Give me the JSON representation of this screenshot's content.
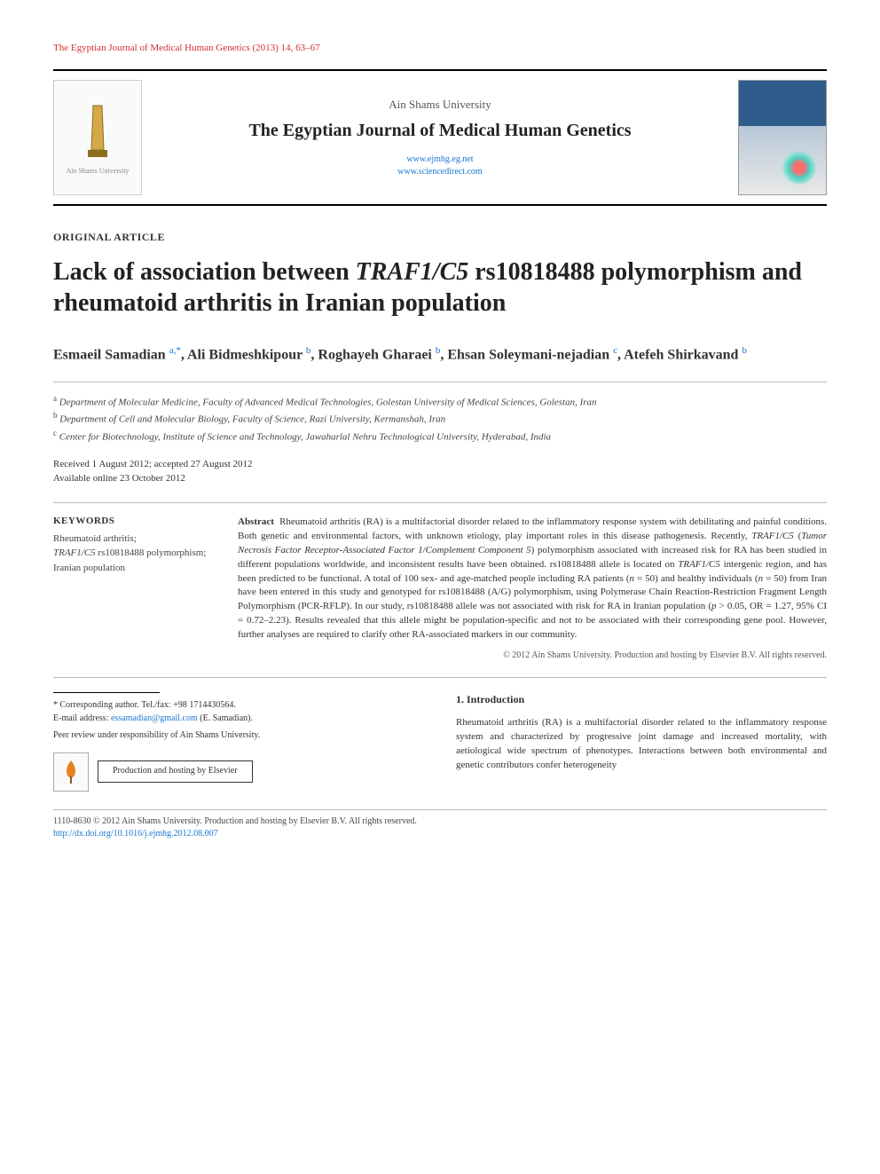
{
  "running_head": "The Egyptian Journal of Medical Human Genetics (2013) 14, 63–67",
  "header": {
    "university": "Ain Shams University",
    "journal": "The Egyptian Journal of Medical Human Genetics",
    "link1": "www.ejmhg.eg.net",
    "link2": "www.sciencedirect.com",
    "logo_caption": "Ain Shams University"
  },
  "article_type": "ORIGINAL ARTICLE",
  "title_pre": "Lack of association between ",
  "title_ital": "TRAF1/C5",
  "title_post": " rs10818488 polymorphism and rheumatoid arthritis in Iranian population",
  "authors_html": "Esmaeil Samadian <sup>a,*</sup>, Ali Bidmeshkipour <sup>b</sup>, Roghayeh Gharaei <sup>b</sup>, Ehsan Soleymani-nejadian <sup>c</sup>, Atefeh Shirkavand <sup>b</sup>",
  "affils": {
    "a": "Department of Molecular Medicine, Faculty of Advanced Medical Technologies, Golestan University of Medical Sciences, Golestan, Iran",
    "b": "Department of Cell and Molecular Biology, Faculty of Science, Razi University, Kermanshah, Iran",
    "c": "Center for Biotechnology, Institute of Science and Technology, Jawaharlal Nehru Technological University, Hyderabad, India"
  },
  "dates": {
    "received_accepted": "Received 1 August 2012; accepted 27 August 2012",
    "online": "Available online 23 October 2012"
  },
  "keywords": {
    "heading": "KEYWORDS",
    "k1": "Rheumatoid arthritis;",
    "k2_ital": "TRAF1/C5",
    "k2_rest": " rs10818488 polymorphism;",
    "k3": "Iranian population"
  },
  "abstract": {
    "label": "Abstract",
    "p1a": "Rheumatoid arthritis (RA) is a multifactorial disorder related to the inflammatory response system with debilitating and painful conditions. Both genetic and environmental factors, with unknown etiology, play important roles in this disease pathogenesis. Recently, ",
    "p1_ital1": "TRAF1/C5",
    "p1b": " (",
    "p1_ital2": "Tumor Necrosis Factor Receptor-Associated Factor 1/Complement Component 5",
    "p1c": ") polymorphism associated with increased risk for RA has been studied in different populations worldwide, and inconsistent results have been obtained. rs10818488 allele is located on ",
    "p1_ital3": "TRAF1/C5",
    "p1d": " intergenic region, and has been predicted to be functional. A total of 100 sex- and age-matched people including RA patients (",
    "p1_ital4": "n",
    "p1e": " = 50) and healthy individuals (",
    "p1_ital5": "n",
    "p1f": " = 50) from Iran have been entered in this study and genotyped for rs10818488 (A/G) polymorphism, using Polymerase Chain Reaction-Restriction Fragment Length Polymorphism (PCR-RFLP). In our study, rs10818488 allele was not associated with risk for RA in Iranian population (",
    "p1_ital6": "p",
    "p1g": " > 0.05, OR = 1.27, 95% CI = 0.72–2.23). Results revealed that this allele might be population-specific and not to be associated with their corresponding gene pool. However, further analyses are required to clarify other RA-associated markers in our community.",
    "copyright": "© 2012 Ain Shams University. Production and hosting by Elsevier B.V. All rights reserved."
  },
  "footnotes": {
    "corr": "* Corresponding author. Tel./fax: +98 1714430564.",
    "email_label": "E-mail address: ",
    "email": "essamadian@gmail.com",
    "email_who": " (E. Samadian).",
    "peer": "Peer review under responsibility of Ain Shams University.",
    "hosting": "Production and hosting by Elsevier",
    "els": "ELSEVIER"
  },
  "intro": {
    "heading": "1. Introduction",
    "body": "Rheumatoid arthritis (RA) is a multifactorial disorder related to the inflammatory response system and characterized by progressive joint damage and increased mortality, with aetiological wide spectrum of phenotypes. Interactions between both environmental and genetic contributors confer heterogeneity"
  },
  "footer": {
    "line1": "1110-8630 © 2012 Ain Shams University. Production and hosting by Elsevier B.V. All rights reserved.",
    "doi": "http://dx.doi.org/10.1016/j.ejmhg.2012.08.007"
  },
  "colors": {
    "red": "#d32f2f",
    "link": "#1976d2",
    "text": "#333333"
  }
}
